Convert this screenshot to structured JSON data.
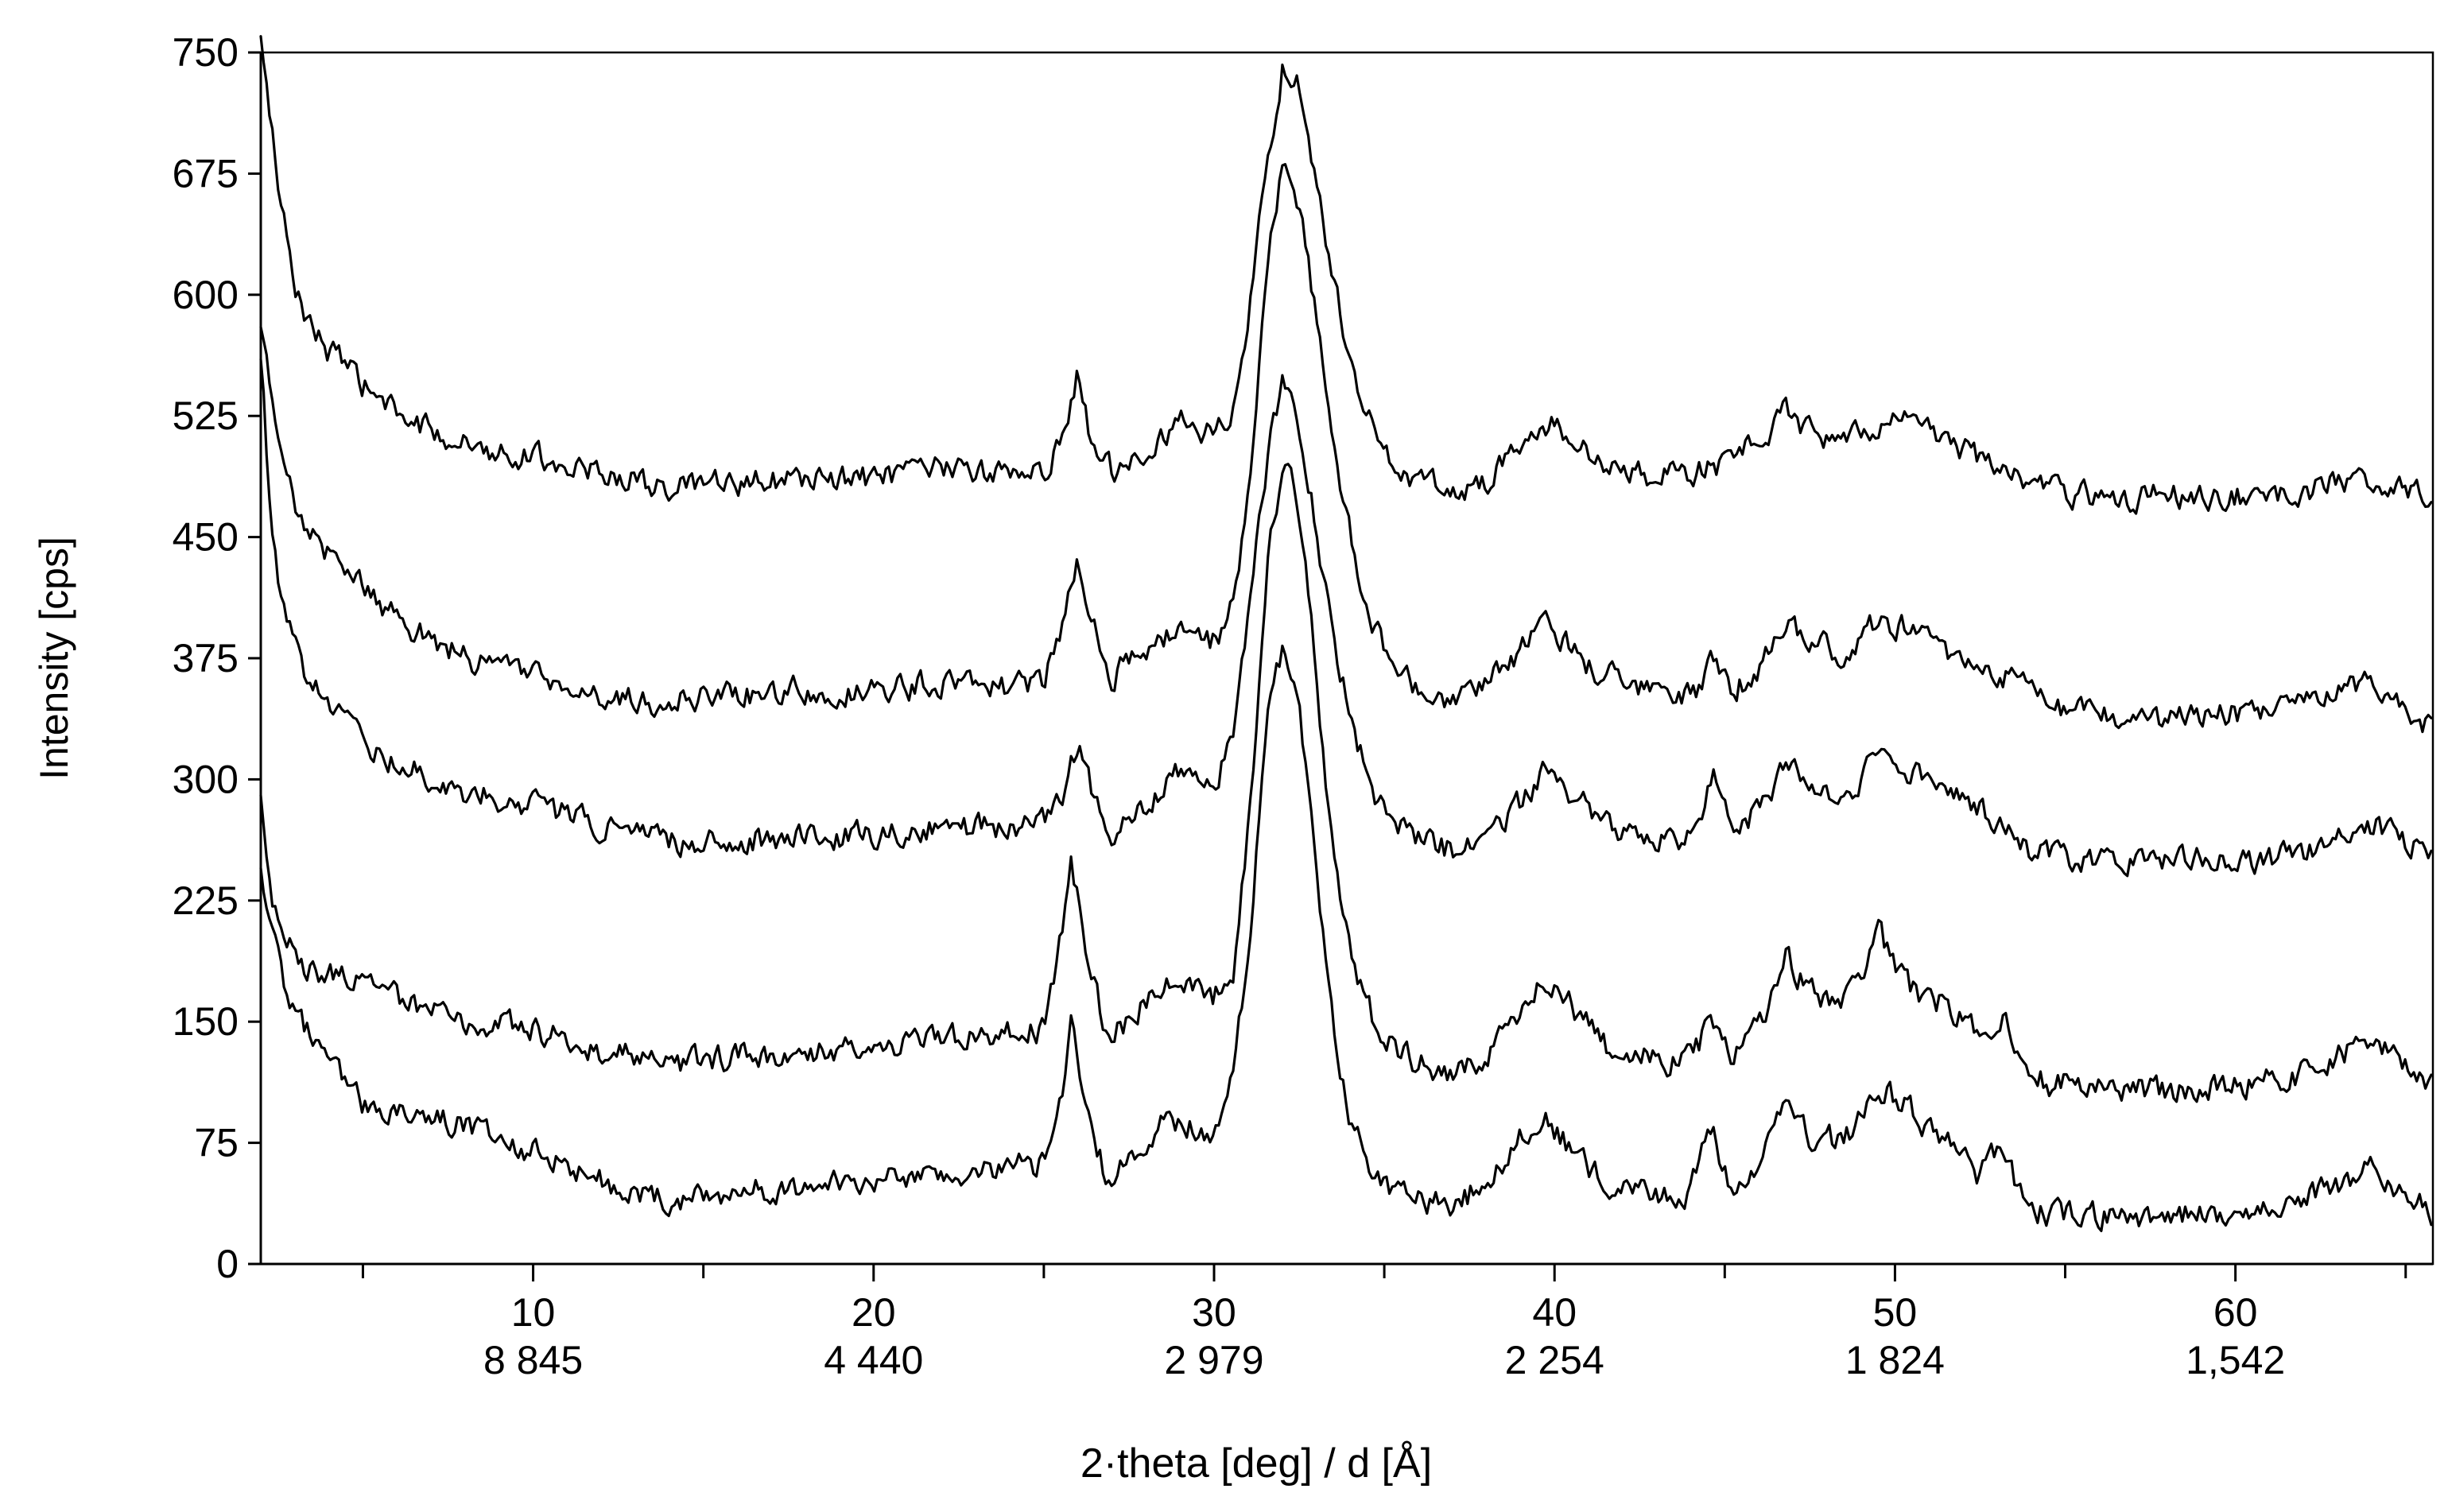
{
  "chart_data": {
    "type": "line",
    "xlabel": "2·theta [deg] / d [Å]",
    "ylabel": "Intensity   [cps]",
    "xlim": [
      2,
      65.8
    ],
    "ylim": [
      0,
      750
    ],
    "y_ticks": [
      0,
      75,
      150,
      225,
      300,
      375,
      450,
      525,
      600,
      675,
      750
    ],
    "x_ticks": [
      {
        "value": 10,
        "label": "10",
        "d_label": "8 845"
      },
      {
        "value": 20,
        "label": "20",
        "d_label": "4 440"
      },
      {
        "value": 30,
        "label": "30",
        "d_label": "2 979"
      },
      {
        "value": 40,
        "label": "40",
        "d_label": "2 254"
      },
      {
        "value": 50,
        "label": "50",
        "d_label": "1 824"
      },
      {
        "value": 60,
        "label": "60",
        "d_label": "1,542"
      }
    ],
    "x_minor_ticks": [
      5,
      15,
      25,
      35,
      45,
      55,
      65
    ],
    "grid": false,
    "legend": "none",
    "series": [
      {
        "points": [
          [
            2,
            760
          ],
          [
            2.5,
            670
          ],
          [
            3,
            600
          ],
          [
            4,
            565
          ],
          [
            5,
            545
          ],
          [
            6,
            525
          ],
          [
            8,
            508
          ],
          [
            10,
            500
          ],
          [
            12,
            490
          ],
          [
            14,
            480
          ],
          [
            16,
            483
          ],
          [
            18,
            486
          ],
          [
            20,
            486
          ],
          [
            22,
            492
          ],
          [
            24,
            490
          ],
          [
            25,
            492
          ],
          [
            25.6,
            510
          ],
          [
            26.0,
            550
          ],
          [
            26.4,
            510
          ],
          [
            27,
            492
          ],
          [
            28,
            505
          ],
          [
            29,
            522
          ],
          [
            30,
            512
          ],
          [
            30.6,
            530
          ],
          [
            31.1,
            600
          ],
          [
            31.6,
            690
          ],
          [
            32.0,
            740
          ],
          [
            32.4,
            735
          ],
          [
            32.9,
            680
          ],
          [
            33.4,
            620
          ],
          [
            34,
            560
          ],
          [
            34.6,
            520
          ],
          [
            35.2,
            495
          ],
          [
            36,
            486
          ],
          [
            37,
            478
          ],
          [
            38,
            485
          ],
          [
            39,
            505
          ],
          [
            40,
            522
          ],
          [
            41,
            500
          ],
          [
            42,
            490
          ],
          [
            43,
            486
          ],
          [
            44,
            490
          ],
          [
            45,
            495
          ],
          [
            46,
            510
          ],
          [
            46.8,
            528
          ],
          [
            47.5,
            515
          ],
          [
            48.5,
            508
          ],
          [
            49.5,
            520
          ],
          [
            50.5,
            525
          ],
          [
            51.5,
            508
          ],
          [
            52.5,
            500
          ],
          [
            53.5,
            488
          ],
          [
            54.5,
            478
          ],
          [
            56,
            476
          ],
          [
            58,
            475
          ],
          [
            60,
            476
          ],
          [
            62,
            478
          ],
          [
            64,
            488
          ],
          [
            65,
            480
          ],
          [
            65.8,
            470
          ]
        ]
      },
      {
        "points": [
          [
            2,
            580
          ],
          [
            2.5,
            510
          ],
          [
            3,
            470
          ],
          [
            4,
            440
          ],
          [
            5,
            420
          ],
          [
            6,
            400
          ],
          [
            8,
            375
          ],
          [
            10,
            365
          ],
          [
            12,
            350
          ],
          [
            14,
            348
          ],
          [
            16,
            352
          ],
          [
            18,
            356
          ],
          [
            20,
            355
          ],
          [
            22,
            360
          ],
          [
            24,
            358
          ],
          [
            25,
            362
          ],
          [
            25.6,
            395
          ],
          [
            26.0,
            440
          ],
          [
            26.4,
            395
          ],
          [
            27,
            365
          ],
          [
            28,
            378
          ],
          [
            29,
            392
          ],
          [
            30,
            385
          ],
          [
            30.6,
            410
          ],
          [
            31.1,
            500
          ],
          [
            31.6,
            620
          ],
          [
            32.0,
            680
          ],
          [
            32.4,
            665
          ],
          [
            32.9,
            600
          ],
          [
            33.4,
            520
          ],
          [
            34,
            450
          ],
          [
            34.6,
            400
          ],
          [
            35.2,
            372
          ],
          [
            36,
            355
          ],
          [
            37,
            345
          ],
          [
            38,
            358
          ],
          [
            39,
            378
          ],
          [
            39.8,
            398
          ],
          [
            41,
            370
          ],
          [
            42,
            360
          ],
          [
            43,
            352
          ],
          [
            44,
            350
          ],
          [
            44.7,
            375
          ],
          [
            45.2,
            355
          ],
          [
            46,
            368
          ],
          [
            46.8,
            400
          ],
          [
            47.5,
            385
          ],
          [
            48.5,
            378
          ],
          [
            49.5,
            398
          ],
          [
            50.5,
            395
          ],
          [
            51.5,
            378
          ],
          [
            52.5,
            372
          ],
          [
            53.5,
            360
          ],
          [
            54.5,
            345
          ],
          [
            56,
            338
          ],
          [
            58,
            336
          ],
          [
            60,
            340
          ],
          [
            62,
            345
          ],
          [
            64,
            362
          ],
          [
            65,
            348
          ],
          [
            65.8,
            330
          ]
        ]
      },
      {
        "points": [
          [
            2,
            560
          ],
          [
            2.3,
            460
          ],
          [
            2.7,
            400
          ],
          [
            3.2,
            370
          ],
          [
            4,
            345
          ],
          [
            5,
            325
          ],
          [
            6,
            310
          ],
          [
            8,
            292
          ],
          [
            10,
            285
          ],
          [
            12,
            270
          ],
          [
            14,
            262
          ],
          [
            16,
            263
          ],
          [
            18,
            264
          ],
          [
            20,
            266
          ],
          [
            22,
            270
          ],
          [
            24,
            270
          ],
          [
            25,
            272
          ],
          [
            25.6,
            295
          ],
          [
            26.0,
            322
          ],
          [
            26.4,
            295
          ],
          [
            27,
            270
          ],
          [
            28,
            285
          ],
          [
            29,
            305
          ],
          [
            30,
            295
          ],
          [
            30.6,
            330
          ],
          [
            31.1,
            420
          ],
          [
            31.6,
            505
          ],
          [
            32.0,
            545
          ],
          [
            32.4,
            530
          ],
          [
            32.9,
            470
          ],
          [
            33.4,
            400
          ],
          [
            34,
            340
          ],
          [
            34.6,
            295
          ],
          [
            35.2,
            272
          ],
          [
            36,
            265
          ],
          [
            37,
            255
          ],
          [
            38,
            262
          ],
          [
            39,
            285
          ],
          [
            39.8,
            305
          ],
          [
            41,
            282
          ],
          [
            42,
            268
          ],
          [
            43,
            262
          ],
          [
            44,
            264
          ],
          [
            44.7,
            305
          ],
          [
            45.2,
            268
          ],
          [
            46,
            280
          ],
          [
            46.8,
            310
          ],
          [
            47.5,
            292
          ],
          [
            48.5,
            288
          ],
          [
            49.5,
            312
          ],
          [
            50.5,
            305
          ],
          [
            51.5,
            290
          ],
          [
            52.5,
            285
          ],
          [
            53.5,
            262
          ],
          [
            54.5,
            252
          ],
          [
            56,
            250
          ],
          [
            58,
            250
          ],
          [
            60,
            250
          ],
          [
            62,
            252
          ],
          [
            64,
            272
          ],
          [
            65,
            262
          ],
          [
            65.8,
            250
          ]
        ]
      },
      {
        "points": [
          [
            2,
            290
          ],
          [
            2.3,
            230
          ],
          [
            2.7,
            200
          ],
          [
            3.2,
            185
          ],
          [
            4,
            180
          ],
          [
            5,
            175
          ],
          [
            6,
            165
          ],
          [
            8,
            150
          ],
          [
            10,
            145
          ],
          [
            12,
            132
          ],
          [
            14,
            124
          ],
          [
            16,
            128
          ],
          [
            18,
            132
          ],
          [
            20,
            136
          ],
          [
            22,
            140
          ],
          [
            24,
            142
          ],
          [
            25,
            145
          ],
          [
            25.5,
            200
          ],
          [
            25.8,
            255
          ],
          [
            26.2,
            200
          ],
          [
            26.8,
            145
          ],
          [
            27.5,
            150
          ],
          [
            28.5,
            175
          ],
          [
            30,
            165
          ],
          [
            30.6,
            185
          ],
          [
            31.1,
            290
          ],
          [
            31.6,
            440
          ],
          [
            32.0,
            495
          ],
          [
            32.4,
            475
          ],
          [
            32.9,
            390
          ],
          [
            33.4,
            270
          ],
          [
            34,
            195
          ],
          [
            34.6,
            155
          ],
          [
            35.2,
            135
          ],
          [
            36,
            125
          ],
          [
            37,
            115
          ],
          [
            38,
            128
          ],
          [
            39,
            155
          ],
          [
            39.6,
            180
          ],
          [
            40.5,
            160
          ],
          [
            41.5,
            135
          ],
          [
            42.5,
            128
          ],
          [
            43.5,
            125
          ],
          [
            44,
            130
          ],
          [
            44.6,
            148
          ],
          [
            45.2,
            128
          ],
          [
            46,
            145
          ],
          [
            46.8,
            190
          ],
          [
            47.5,
            168
          ],
          [
            48.5,
            162
          ],
          [
            49.5,
            205
          ],
          [
            50.5,
            170
          ],
          [
            51.5,
            160
          ],
          [
            52.5,
            145
          ],
          [
            53.2,
            155
          ],
          [
            53.8,
            120
          ],
          [
            54.5,
            112
          ],
          [
            56,
            110
          ],
          [
            58,
            108
          ],
          [
            60,
            110
          ],
          [
            62,
            118
          ],
          [
            64,
            138
          ],
          [
            65,
            125
          ],
          [
            65.8,
            108
          ]
        ]
      },
      {
        "points": [
          [
            2,
            245
          ],
          [
            2.3,
            205
          ],
          [
            2.7,
            175
          ],
          [
            3.2,
            150
          ],
          [
            4,
            125
          ],
          [
            5,
            100
          ],
          [
            6,
            95
          ],
          [
            8,
            85
          ],
          [
            10,
            70
          ],
          [
            12,
            52
          ],
          [
            14,
            40
          ],
          [
            16,
            45
          ],
          [
            18,
            48
          ],
          [
            20,
            50
          ],
          [
            22,
            56
          ],
          [
            24,
            60
          ],
          [
            25,
            62
          ],
          [
            25.5,
            100
          ],
          [
            25.8,
            145
          ],
          [
            26.2,
            100
          ],
          [
            26.8,
            55
          ],
          [
            27.5,
            65
          ],
          [
            28.5,
            90
          ],
          [
            30,
            80
          ],
          [
            30.6,
            115
          ],
          [
            31.1,
            220
          ],
          [
            31.6,
            340
          ],
          [
            32.0,
            380
          ],
          [
            32.4,
            360
          ],
          [
            32.9,
            270
          ],
          [
            33.4,
            160
          ],
          [
            34,
            90
          ],
          [
            34.6,
            55
          ],
          [
            35.2,
            42
          ],
          [
            36,
            38
          ],
          [
            37,
            36
          ],
          [
            38,
            50
          ],
          [
            39,
            80
          ],
          [
            39.7,
            92
          ],
          [
            40.5,
            70
          ],
          [
            41.5,
            50
          ],
          [
            42.5,
            45
          ],
          [
            43.5,
            40
          ],
          [
            44,
            45
          ],
          [
            44.6,
            85
          ],
          [
            45.2,
            45
          ],
          [
            46,
            62
          ],
          [
            46.8,
            105
          ],
          [
            47.5,
            80
          ],
          [
            48.5,
            75
          ],
          [
            49.5,
            112
          ],
          [
            50.5,
            95
          ],
          [
            51.5,
            75
          ],
          [
            52.5,
            55
          ],
          [
            53.2,
            75
          ],
          [
            53.8,
            35
          ],
          [
            54.5,
            30
          ],
          [
            56,
            30
          ],
          [
            58,
            30
          ],
          [
            60,
            32
          ],
          [
            62,
            42
          ],
          [
            64,
            58
          ],
          [
            65,
            45
          ],
          [
            65.8,
            30
          ]
        ]
      }
    ]
  }
}
